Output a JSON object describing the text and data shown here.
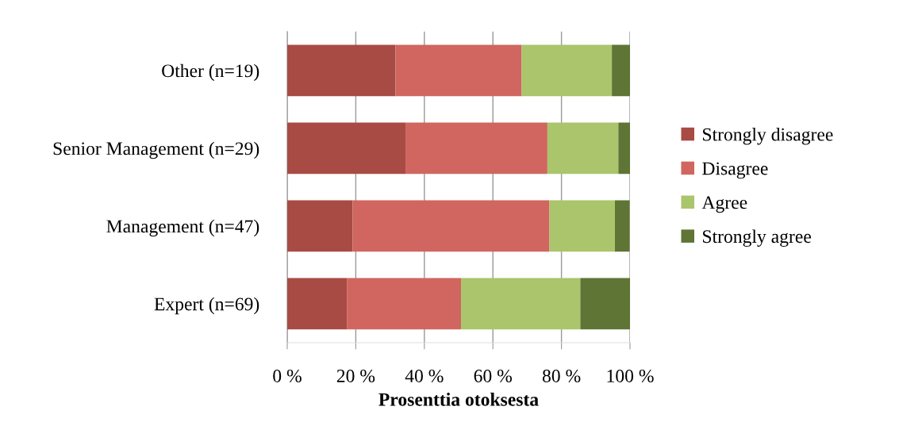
{
  "chart_data": {
    "type": "bar",
    "orientation": "horizontal",
    "stacked": true,
    "categories": [
      "Other (n=19)",
      "Senior Management (n=29)",
      "Management (n=47)",
      "Expert (n=69)"
    ],
    "series": [
      {
        "name": "Strongly disagree",
        "color": "#a84b44",
        "values": [
          31.6,
          34.5,
          19.1,
          17.4
        ]
      },
      {
        "name": "Disagree",
        "color": "#d0665f",
        "values": [
          36.8,
          41.4,
          57.4,
          33.3
        ]
      },
      {
        "name": "Agree",
        "color": "#aac56b",
        "values": [
          26.3,
          20.7,
          19.1,
          34.8
        ]
      },
      {
        "name": "Strongly agree",
        "color": "#5f7535",
        "values": [
          5.3,
          3.4,
          4.3,
          14.5
        ]
      }
    ],
    "xlabel": "Prosenttia otoksesta",
    "xlim": [
      0,
      100
    ],
    "xticks": [
      {
        "value": 0,
        "label": "0 %"
      },
      {
        "value": 20,
        "label": "20 %"
      },
      {
        "value": 40,
        "label": "40 %"
      },
      {
        "value": 60,
        "label": "60 %"
      },
      {
        "value": 80,
        "label": "80 %"
      },
      {
        "value": 100,
        "label": "100 %"
      }
    ],
    "grid": "x",
    "legend": "right"
  }
}
